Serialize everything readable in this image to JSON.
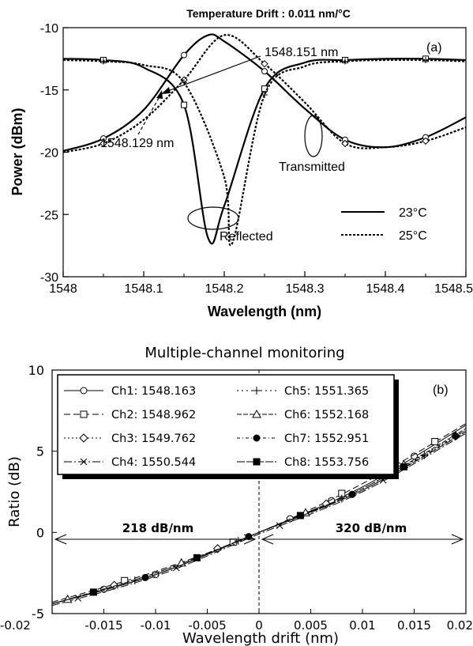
{
  "chart_data": [
    {
      "type": "line",
      "panel_label": "(a)",
      "title": "Temperature Drift  : 0.011 nm/°C",
      "xlabel": "Wavelength (nm)",
      "ylabel": "Power (dBm)",
      "xlim": [
        1548,
        1548.5
      ],
      "ylim": [
        -30,
        -10
      ],
      "xticks": [
        "1548",
        "1548.1",
        "1548.2",
        "1548.3",
        "1548.4",
        "1548.5"
      ],
      "yticks": [
        "-10",
        "-15",
        "-20",
        "-25",
        "-30"
      ],
      "legend": [
        {
          "label": "23°C",
          "style": "solid"
        },
        {
          "label": "25°C",
          "style": "dotted"
        }
      ],
      "annotations": {
        "a1": "1548.151 nm",
        "a2": "1548.129 nm",
        "transmitted": "Transmitted",
        "reflected": "Reflected"
      },
      "series": [
        {
          "name": "23°C reflected",
          "x": [
            1548,
            1548.05,
            1548.1,
            1548.15,
            1548.18,
            1548.2,
            1548.25,
            1548.3,
            1548.35,
            1548.4,
            1548.45,
            1548.5
          ],
          "y": [
            -19.9,
            -18.9,
            -16.6,
            -12.2,
            -10.6,
            -11.1,
            -13.5,
            -16.5,
            -19.0,
            -19.6,
            -18.8,
            -17.2
          ]
        },
        {
          "name": "23°C transmitted",
          "x": [
            1548,
            1548.05,
            1548.1,
            1548.15,
            1548.18,
            1548.2,
            1548.25,
            1548.3,
            1548.35,
            1548.4,
            1548.45,
            1548.5
          ],
          "y": [
            -12.5,
            -12.6,
            -13.2,
            -16.2,
            -26.9,
            -24.3,
            -14.9,
            -12.8,
            -12.6,
            -12.5,
            -12.5,
            -12.6
          ]
        },
        {
          "name": "25°C reflected",
          "x": [
            1548,
            1548.05,
            1548.1,
            1548.15,
            1548.2,
            1548.25,
            1548.3,
            1548.35,
            1548.4,
            1548.45,
            1548.5
          ],
          "y": [
            -20.0,
            -19.3,
            -17.4,
            -14.2,
            -10.6,
            -12.9,
            -16.0,
            -19.3,
            -19.6,
            -19.1,
            -18.0
          ]
        },
        {
          "name": "25°C transmitted",
          "x": [
            1548,
            1548.05,
            1548.1,
            1548.15,
            1548.2,
            1548.21,
            1548.25,
            1548.3,
            1548.35,
            1548.4,
            1548.45,
            1548.5
          ],
          "y": [
            -12.6,
            -12.7,
            -13.0,
            -14.4,
            -22.0,
            -27.3,
            -15.4,
            -13.1,
            -12.7,
            -12.6,
            -12.6,
            -12.7
          ]
        }
      ]
    },
    {
      "type": "line",
      "panel_label": "(b)",
      "title": "Multiple-channel monitoring",
      "xlabel": "Wavelength drift (nm)",
      "ylabel": "Ratio (dB)",
      "xlim": [
        -0.02,
        0.02
      ],
      "ylim": [
        -5,
        10
      ],
      "xticks": [
        "-0.02",
        "-0.015",
        "-0.01",
        "-0.005",
        "0",
        "0.005",
        "0.01",
        "0.015",
        "0.02"
      ],
      "yticks": [
        "10",
        "5",
        "0",
        "-5"
      ],
      "annotations": {
        "left_slope": "218 dB/nm",
        "right_slope": "320 dB/nm"
      },
      "legend_placement": "top-left",
      "series": [
        {
          "name": "Ch1: 1548.163",
          "marker": "open-circle",
          "x": [
            -0.02,
            -0.01,
            0,
            0.01,
            0.02
          ],
          "y": [
            -4.4,
            -2.6,
            0.0,
            2.8,
            6.6
          ]
        },
        {
          "name": "Ch2: 1548.962",
          "marker": "open-square",
          "x": [
            -0.02,
            -0.01,
            0,
            0.01,
            0.02
          ],
          "y": [
            -4.3,
            -2.4,
            0.0,
            3.0,
            6.7
          ]
        },
        {
          "name": "Ch3: 1549.762",
          "marker": "open-diamond",
          "x": [
            -0.02,
            -0.01,
            0,
            0.01,
            0.02
          ],
          "y": [
            -4.4,
            -2.5,
            0.0,
            2.7,
            6.3
          ]
        },
        {
          "name": "Ch4: 1550.544",
          "marker": "x",
          "x": [
            -0.02,
            -0.01,
            0,
            0.01,
            0.02
          ],
          "y": [
            -4.5,
            -2.7,
            -0.1,
            2.5,
            6.1
          ]
        },
        {
          "name": "Ch5: 1551.365",
          "marker": "plus",
          "x": [
            -0.02,
            -0.01,
            0,
            0.01,
            0.02
          ],
          "y": [
            -4.4,
            -2.6,
            0.0,
            2.6,
            6.2
          ]
        },
        {
          "name": "Ch6: 1552.168",
          "marker": "open-triangle",
          "x": [
            -0.02,
            -0.01,
            0,
            0.01,
            0.02
          ],
          "y": [
            -4.4,
            -2.5,
            0.0,
            2.7,
            6.4
          ]
        },
        {
          "name": "Ch7: 1552.951",
          "marker": "filled-circle",
          "x": [
            -0.02,
            -0.01,
            0,
            0.01,
            0.02
          ],
          "y": [
            -4.4,
            -2.6,
            0.0,
            2.6,
            6.3
          ]
        },
        {
          "name": "Ch8: 1553.756",
          "marker": "filled-square",
          "x": [
            -0.02,
            -0.01,
            0,
            0.01,
            0.02
          ],
          "y": [
            -4.4,
            -2.6,
            0.0,
            2.6,
            6.2
          ]
        }
      ]
    }
  ]
}
